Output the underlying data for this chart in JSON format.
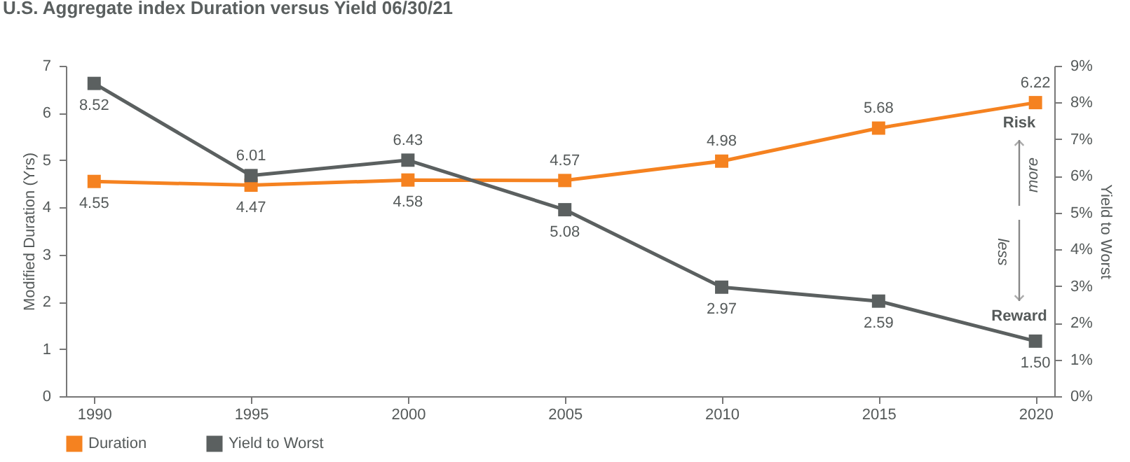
{
  "chart_data": {
    "type": "line",
    "title": "U.S. Aggregate index Duration versus Yield 06/30/21",
    "x": [
      1990,
      1995,
      2000,
      2005,
      2010,
      2015,
      2020
    ],
    "series": [
      {
        "name": "Duration",
        "color": "#f58220",
        "values": [
          4.55,
          4.47,
          4.58,
          4.57,
          4.98,
          5.68,
          6.22
        ],
        "value_labels": [
          "4.55",
          "4.47",
          "4.58",
          "4.57",
          "4.98",
          "5.68",
          "6.22"
        ]
      },
      {
        "name": "Yield to Worst",
        "color": "#5b6060",
        "axis": "y2",
        "values": [
          8.52,
          6.01,
          6.43,
          5.08,
          2.97,
          2.59,
          1.5
        ],
        "value_labels": [
          "8.52",
          "6.01",
          "6.43",
          "5.08",
          "2.97",
          "2.59",
          "1.50"
        ]
      }
    ],
    "xlim": [
      1989.1,
      2020.6
    ],
    "xticks": [
      1990,
      1995,
      2000,
      2005,
      2010,
      2015,
      2020
    ],
    "ylim": [
      0,
      7
    ],
    "yticks": [
      0,
      1,
      2,
      3,
      4,
      5,
      6,
      7
    ],
    "y2lim": [
      0,
      9
    ],
    "y2ticks": [
      {
        "value": 0,
        "label": "0%"
      },
      {
        "value": 1,
        "label": "1%"
      },
      {
        "value": 2,
        "label": "2%"
      },
      {
        "value": 3,
        "label": "3%"
      },
      {
        "value": 4,
        "label": "4%"
      },
      {
        "value": 5,
        "label": "5%"
      },
      {
        "value": 6,
        "label": "6%"
      },
      {
        "value": 7,
        "label": "7%"
      },
      {
        "value": 8,
        "label": "8%"
      },
      {
        "value": 9,
        "label": "9%"
      }
    ],
    "ylabel": "Modified Duration (Yrs)",
    "y2label": "Yield to Worst",
    "annotations": [
      "Risk",
      "more",
      "less",
      "Reward"
    ],
    "grid": false,
    "legend": "bottom left",
    "marker": "square",
    "line_style": "solid"
  }
}
